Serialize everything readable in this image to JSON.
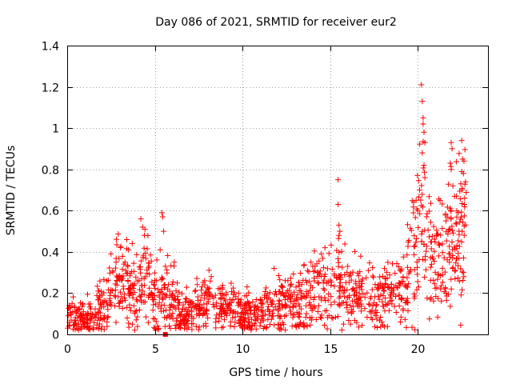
{
  "chart_data": {
    "type": "scatter",
    "title": "Day 086 of 2021, SRMTID for receiver eur2",
    "xlabel": "GPS time / hours",
    "ylabel": "SRMTID / TECUs",
    "xlim": [
      0,
      24
    ],
    "ylim": [
      0,
      1.4
    ],
    "x_ticks": [
      0,
      5,
      10,
      15,
      20
    ],
    "y_ticks": [
      0,
      0.2,
      0.4,
      0.6,
      0.8,
      1,
      1.2,
      1.4
    ],
    "x_tick_labels": [
      "0",
      "5",
      "10",
      "15",
      "20"
    ],
    "y_tick_labels": [
      "0",
      "0.2",
      "0.4",
      "0.6",
      "0.8",
      "1",
      "1.2",
      "1.4"
    ],
    "grid": true,
    "marker": "+",
    "series_color": "#ff0000",
    "envelope": {
      "description": "approximate median trend of SRMTID vs time (hours, TECUs)",
      "x": [
        0,
        0.5,
        1,
        1.5,
        2,
        2.5,
        3,
        3.5,
        4,
        4.3,
        4.6,
        5,
        5.5,
        6,
        6.5,
        7,
        8,
        9,
        10,
        10.5,
        11,
        11.5,
        12,
        12.5,
        13,
        13.5,
        14,
        14.5,
        15,
        15.5,
        16,
        16.5,
        17,
        17.5,
        18,
        18.5,
        19,
        19.5,
        20,
        20.3,
        20.6,
        21,
        21.5,
        22,
        22.5,
        22.8
      ],
      "y": [
        0.09,
        0.08,
        0.06,
        0.09,
        0.14,
        0.2,
        0.26,
        0.24,
        0.2,
        0.3,
        0.25,
        0.15,
        0.2,
        0.18,
        0.1,
        0.11,
        0.15,
        0.13,
        0.1,
        0.09,
        0.1,
        0.13,
        0.14,
        0.13,
        0.14,
        0.17,
        0.2,
        0.22,
        0.21,
        0.25,
        0.19,
        0.2,
        0.18,
        0.17,
        0.17,
        0.19,
        0.2,
        0.32,
        0.48,
        0.55,
        0.35,
        0.33,
        0.4,
        0.42,
        0.45,
        0.5
      ]
    },
    "spikes": [
      {
        "x": 4.2,
        "y": 0.56
      },
      {
        "x": 4.3,
        "y": 0.52
      },
      {
        "x": 4.4,
        "y": 0.48
      },
      {
        "x": 5.4,
        "y": 0.59
      },
      {
        "x": 5.45,
        "y": 0.57
      },
      {
        "x": 5.5,
        "y": 0.5
      },
      {
        "x": 5.3,
        "y": 0.41
      },
      {
        "x": 15.45,
        "y": 0.75
      },
      {
        "x": 15.45,
        "y": 0.63
      },
      {
        "x": 15.5,
        "y": 0.53
      },
      {
        "x": 15.55,
        "y": 0.5
      },
      {
        "x": 15.5,
        "y": 0.48
      },
      {
        "x": 20.2,
        "y": 1.21
      },
      {
        "x": 20.25,
        "y": 1.13
      },
      {
        "x": 20.3,
        "y": 1.05
      },
      {
        "x": 20.35,
        "y": 0.98
      },
      {
        "x": 20.3,
        "y": 1.02
      },
      {
        "x": 20.4,
        "y": 0.93
      },
      {
        "x": 20.35,
        "y": 0.82
      },
      {
        "x": 20.4,
        "y": 0.76
      },
      {
        "x": 20.25,
        "y": 0.88
      },
      {
        "x": 20.1,
        "y": 0.7
      },
      {
        "x": 19.9,
        "y": 0.65
      },
      {
        "x": 20.0,
        "y": 0.6
      },
      {
        "x": 20.5,
        "y": 0.57
      },
      {
        "x": 21.9,
        "y": 0.93
      },
      {
        "x": 21.95,
        "y": 0.9
      },
      {
        "x": 21.85,
        "y": 0.83
      },
      {
        "x": 21.9,
        "y": 0.8
      },
      {
        "x": 22.5,
        "y": 0.94
      },
      {
        "x": 22.55,
        "y": 0.85
      },
      {
        "x": 22.6,
        "y": 0.78
      },
      {
        "x": 22.45,
        "y": 0.73
      },
      {
        "x": 22.65,
        "y": 0.63
      },
      {
        "x": 22.2,
        "y": 0.67
      },
      {
        "x": 22.0,
        "y": 0.72
      },
      {
        "x": 22.3,
        "y": 0.59
      },
      {
        "x": 21.6,
        "y": 0.55
      },
      {
        "x": 22.6,
        "y": 0.3
      },
      {
        "x": 21.6,
        "y": 0.2
      },
      {
        "x": 21.3,
        "y": 0.22
      },
      {
        "x": 2.5,
        "y": 0.39
      },
      {
        "x": 3.5,
        "y": 0.41
      },
      {
        "x": 5.6,
        "y": 0.33
      },
      {
        "x": 13.9,
        "y": 0.35
      },
      {
        "x": 14.5,
        "y": 0.39
      },
      {
        "x": 16.0,
        "y": 0.33
      },
      {
        "x": 11.8,
        "y": 0.32
      }
    ],
    "outlier_square": {
      "x": 5.6,
      "y": 0.0
    }
  }
}
